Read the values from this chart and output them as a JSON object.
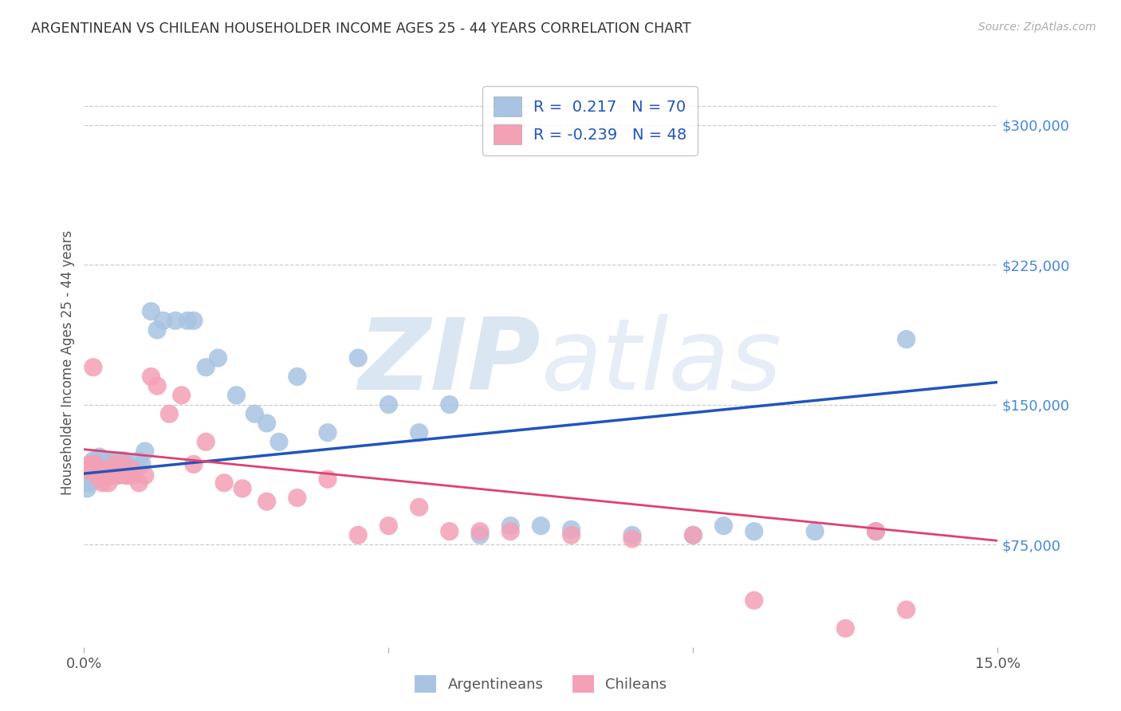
{
  "title": "ARGENTINEAN VS CHILEAN HOUSEHOLDER INCOME AGES 25 - 44 YEARS CORRELATION CHART",
  "source": "Source: ZipAtlas.com",
  "ylabel": "Householder Income Ages 25 - 44 years",
  "yticks": [
    75000,
    150000,
    225000,
    300000
  ],
  "ytick_labels": [
    "$75,000",
    "$150,000",
    "$225,000",
    "$300,000"
  ],
  "xmin": 0.0,
  "xmax": 15.0,
  "ymin": 20000,
  "ymax": 325000,
  "argentinean_color": "#a8c4e2",
  "chilean_color": "#f4a0b5",
  "argentina_line_color": "#2255bb",
  "chile_line_color": "#e04070",
  "argentina_R": 0.217,
  "argentina_N": 70,
  "chile_R": -0.239,
  "chile_N": 48,
  "background_color": "#ffffff",
  "grid_color": "#cccccc",
  "blue_text": "#4488dd",
  "dark_text": "#333333",
  "source_color": "#aaaaaa",
  "legend_text_color": "#2255bb",
  "arg_x": [
    0.05,
    0.08,
    0.1,
    0.12,
    0.15,
    0.18,
    0.2,
    0.22,
    0.25,
    0.28,
    0.3,
    0.32,
    0.35,
    0.38,
    0.4,
    0.42,
    0.45,
    0.48,
    0.5,
    0.52,
    0.55,
    0.58,
    0.6,
    0.65,
    0.7,
    0.75,
    0.8,
    0.85,
    0.9,
    0.95,
    1.0,
    1.1,
    1.2,
    1.3,
    1.5,
    1.7,
    1.8,
    2.0,
    2.2,
    2.5,
    2.8,
    3.0,
    3.2,
    3.5,
    4.0,
    4.5,
    5.0,
    5.5,
    6.0,
    6.5,
    7.0,
    7.5,
    8.0,
    9.0,
    10.0,
    10.5,
    11.0,
    12.0,
    13.0,
    13.5,
    0.06,
    0.09,
    0.14,
    0.19,
    0.24,
    0.33,
    0.44,
    0.56,
    0.68,
    0.82
  ],
  "arg_y": [
    105000,
    112000,
    118000,
    115000,
    120000,
    115000,
    112000,
    118000,
    122000,
    116000,
    120000,
    115000,
    118000,
    112000,
    120000,
    115000,
    118000,
    120000,
    115000,
    112000,
    118000,
    120000,
    115000,
    120000,
    118000,
    115000,
    112000,
    115000,
    120000,
    118000,
    125000,
    200000,
    190000,
    195000,
    195000,
    195000,
    195000,
    170000,
    175000,
    155000,
    145000,
    140000,
    130000,
    165000,
    135000,
    175000,
    150000,
    135000,
    150000,
    80000,
    85000,
    85000,
    83000,
    80000,
    80000,
    85000,
    82000,
    82000,
    82000,
    185000,
    108000,
    108000,
    110000,
    110000,
    110000,
    112000,
    112000,
    112000,
    112000,
    115000
  ],
  "chile_x": [
    0.05,
    0.1,
    0.15,
    0.2,
    0.25,
    0.3,
    0.35,
    0.4,
    0.45,
    0.5,
    0.55,
    0.6,
    0.65,
    0.7,
    0.75,
    0.8,
    0.9,
    1.0,
    1.1,
    1.2,
    1.4,
    1.6,
    1.8,
    2.0,
    2.3,
    2.6,
    3.0,
    3.5,
    4.0,
    4.5,
    5.0,
    5.5,
    6.0,
    6.5,
    7.0,
    8.0,
    9.0,
    10.0,
    11.0,
    12.5,
    13.0,
    13.5,
    0.08,
    0.18,
    0.28,
    0.38,
    0.58,
    0.72
  ],
  "chile_y": [
    115000,
    118000,
    170000,
    112000,
    115000,
    108000,
    112000,
    108000,
    115000,
    118000,
    112000,
    115000,
    118000,
    112000,
    112000,
    115000,
    108000,
    112000,
    165000,
    160000,
    145000,
    155000,
    118000,
    130000,
    108000,
    105000,
    98000,
    100000,
    110000,
    80000,
    85000,
    95000,
    82000,
    82000,
    82000,
    80000,
    78000,
    80000,
    45000,
    30000,
    82000,
    40000,
    115000,
    118000,
    115000,
    112000,
    115000,
    112000
  ],
  "arg_line_x0": 0.0,
  "arg_line_y0": 113000,
  "arg_line_x1": 15.0,
  "arg_line_y1": 162000,
  "chile_line_x0": 0.0,
  "chile_line_y0": 126000,
  "chile_line_x1": 15.0,
  "chile_line_y1": 77000
}
